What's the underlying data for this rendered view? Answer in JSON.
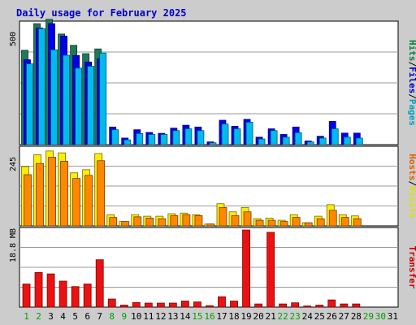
{
  "chart_data": {
    "type": "bar",
    "title": "Daily usage for February 2025",
    "x": [
      "1",
      "2",
      "3",
      "4",
      "5",
      "6",
      "7",
      "8",
      "9",
      "10",
      "11",
      "12",
      "13",
      "14",
      "15",
      "16",
      "17",
      "18",
      "19",
      "20",
      "21",
      "22",
      "23",
      "24",
      "25",
      "26",
      "27",
      "28",
      "29",
      "30",
      "31"
    ],
    "weekend_days": [
      "1",
      "2",
      "8",
      "9",
      "15",
      "16",
      "22",
      "23",
      "29",
      "30"
    ],
    "no_data_days": [
      "29",
      "30",
      "31"
    ],
    "panels": [
      {
        "id": "hfp",
        "ymax_label": "500",
        "ymax": 540,
        "side_labels": [
          {
            "text": "Hits",
            "color": "#008040"
          },
          {
            "text": "/",
            "color": "#000000"
          },
          {
            "text": "Files",
            "color": "#0000c0"
          },
          {
            "text": "/",
            "color": "#000000"
          },
          {
            "text": "Pages",
            "color": "#00a0c0"
          }
        ],
        "series": [
          {
            "name": "Hits",
            "color": "#1e7a5a",
            "values": [
              418,
              536,
              555,
              490,
              440,
              403,
              424,
              0,
              0,
              0,
              0,
              0,
              0,
              0,
              0,
              0,
              0,
              0,
              0,
              0,
              0,
              0,
              0,
              0,
              0,
              0,
              0,
              0,
              0,
              0,
              0
            ]
          },
          {
            "name": "Files",
            "color": "#0000ee",
            "values": [
              376,
              517,
              536,
              481,
              395,
              366,
              380,
              78,
              29,
              66,
              54,
              50,
              73,
              86,
              78,
              12,
              108,
              81,
              112,
              33,
              70,
              45,
              78,
              16,
              37,
              103,
              51,
              51,
              0,
              0,
              0
            ]
          },
          {
            "name": "Pages",
            "color": "#00bbee",
            "values": [
              358,
              514,
              420,
              396,
              339,
              347,
              406,
              66,
              21,
              49,
              45,
              45,
              62,
              70,
              62,
              8,
              91,
              70,
              99,
              25,
              62,
              33,
              53,
              12,
              29,
              70,
              33,
              29,
              0,
              0,
              0
            ]
          }
        ]
      },
      {
        "id": "vh",
        "ymax_label": "245",
        "ymax": 250,
        "side_labels": [
          {
            "text": "Hosts",
            "color": "#e06000"
          },
          {
            "text": "/",
            "color": "#000000"
          },
          {
            "text": "Visits",
            "color": "#e0e000"
          }
        ],
        "series": [
          {
            "name": "Visits",
            "color": "#ffee00",
            "values": [
              190,
              228,
              240,
              234,
              170,
              180,
              232,
              36,
              14,
              36,
              31,
              31,
              39,
              41,
              36,
              6,
              71,
              45,
              59,
              23,
              25,
              18,
              36,
              10,
              31,
              68,
              36,
              32,
              0,
              0,
              0
            ]
          },
          {
            "name": "Hosts",
            "color": "#ff8800",
            "values": [
              164,
              200,
              220,
              207,
              152,
              162,
              209,
              27,
              14,
              29,
              25,
              23,
              33,
              36,
              33,
              6,
              59,
              33,
              45,
              18,
              18,
              14,
              27,
              10,
              23,
              50,
              27,
              23,
              0,
              0,
              0
            ]
          }
        ]
      },
      {
        "id": "kb",
        "ymax_label": "18.8 MB",
        "ymax": 27.0,
        "side_labels": [
          {
            "text": "Transfer",
            "color": "#cc0000"
          }
        ],
        "series": [
          {
            "name": "Transfer",
            "color": "#ee1111",
            "values": [
              8.0,
              12.0,
              11.5,
              9.0,
              7.1,
              8.0,
              16.4,
              2.8,
              0.7,
              1.6,
              1.4,
              1.4,
              1.4,
              2.1,
              1.8,
              0.5,
              3.6,
              2.1,
              26.7,
              1.1,
              25.9,
              1.1,
              1.5,
              0.4,
              0.7,
              2.5,
              1.1,
              1.1,
              0,
              0,
              0
            ]
          }
        ]
      }
    ]
  }
}
